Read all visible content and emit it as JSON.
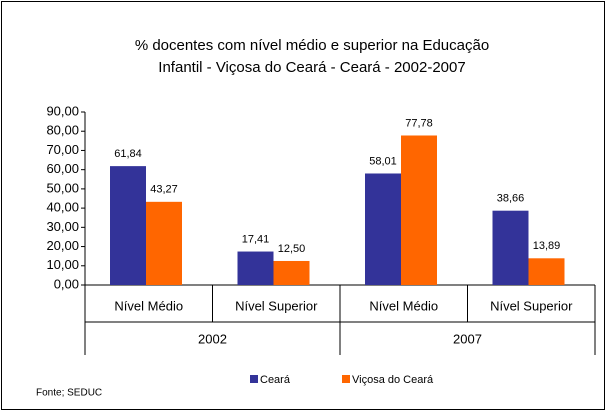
{
  "chart_data": {
    "type": "bar",
    "title": [
      "% docentes com nível médio e superior na  Educação",
      "Infantil - Viçosa do Ceará  - Ceará - 2002-2007"
    ],
    "categories": [
      "Nível Médio",
      "Nível Superior",
      "Nível Médio",
      "Nível Superior"
    ],
    "groups": [
      "2002",
      "2007"
    ],
    "series": [
      {
        "name": "Ceará",
        "color": "#333399",
        "values": [
          61.84,
          17.41,
          58.01,
          38.66
        ],
        "value_labels": [
          "61,84",
          "17,41",
          "58,01",
          "38,66"
        ]
      },
      {
        "name": "Viçosa do Ceará",
        "color": "#ff6600",
        "values": [
          43.27,
          12.5,
          77.78,
          13.89
        ],
        "value_labels": [
          "43,27",
          "12,50",
          "77,78",
          "13,89"
        ]
      }
    ],
    "ylim": [
      0,
      90
    ],
    "yticks": [
      {
        "value": 0,
        "label": "0,00"
      },
      {
        "value": 10,
        "label": "10,00"
      },
      {
        "value": 20,
        "label": "20,00"
      },
      {
        "value": 30,
        "label": "30,00"
      },
      {
        "value": 40,
        "label": "40,00"
      },
      {
        "value": 50,
        "label": "50,00"
      },
      {
        "value": 60,
        "label": "60,00"
      },
      {
        "value": 70,
        "label": "70,00"
      },
      {
        "value": 80,
        "label": "80,00"
      },
      {
        "value": 90,
        "label": "90,00"
      }
    ],
    "source": "Fonte; SEDUC",
    "legend": "bottom"
  }
}
